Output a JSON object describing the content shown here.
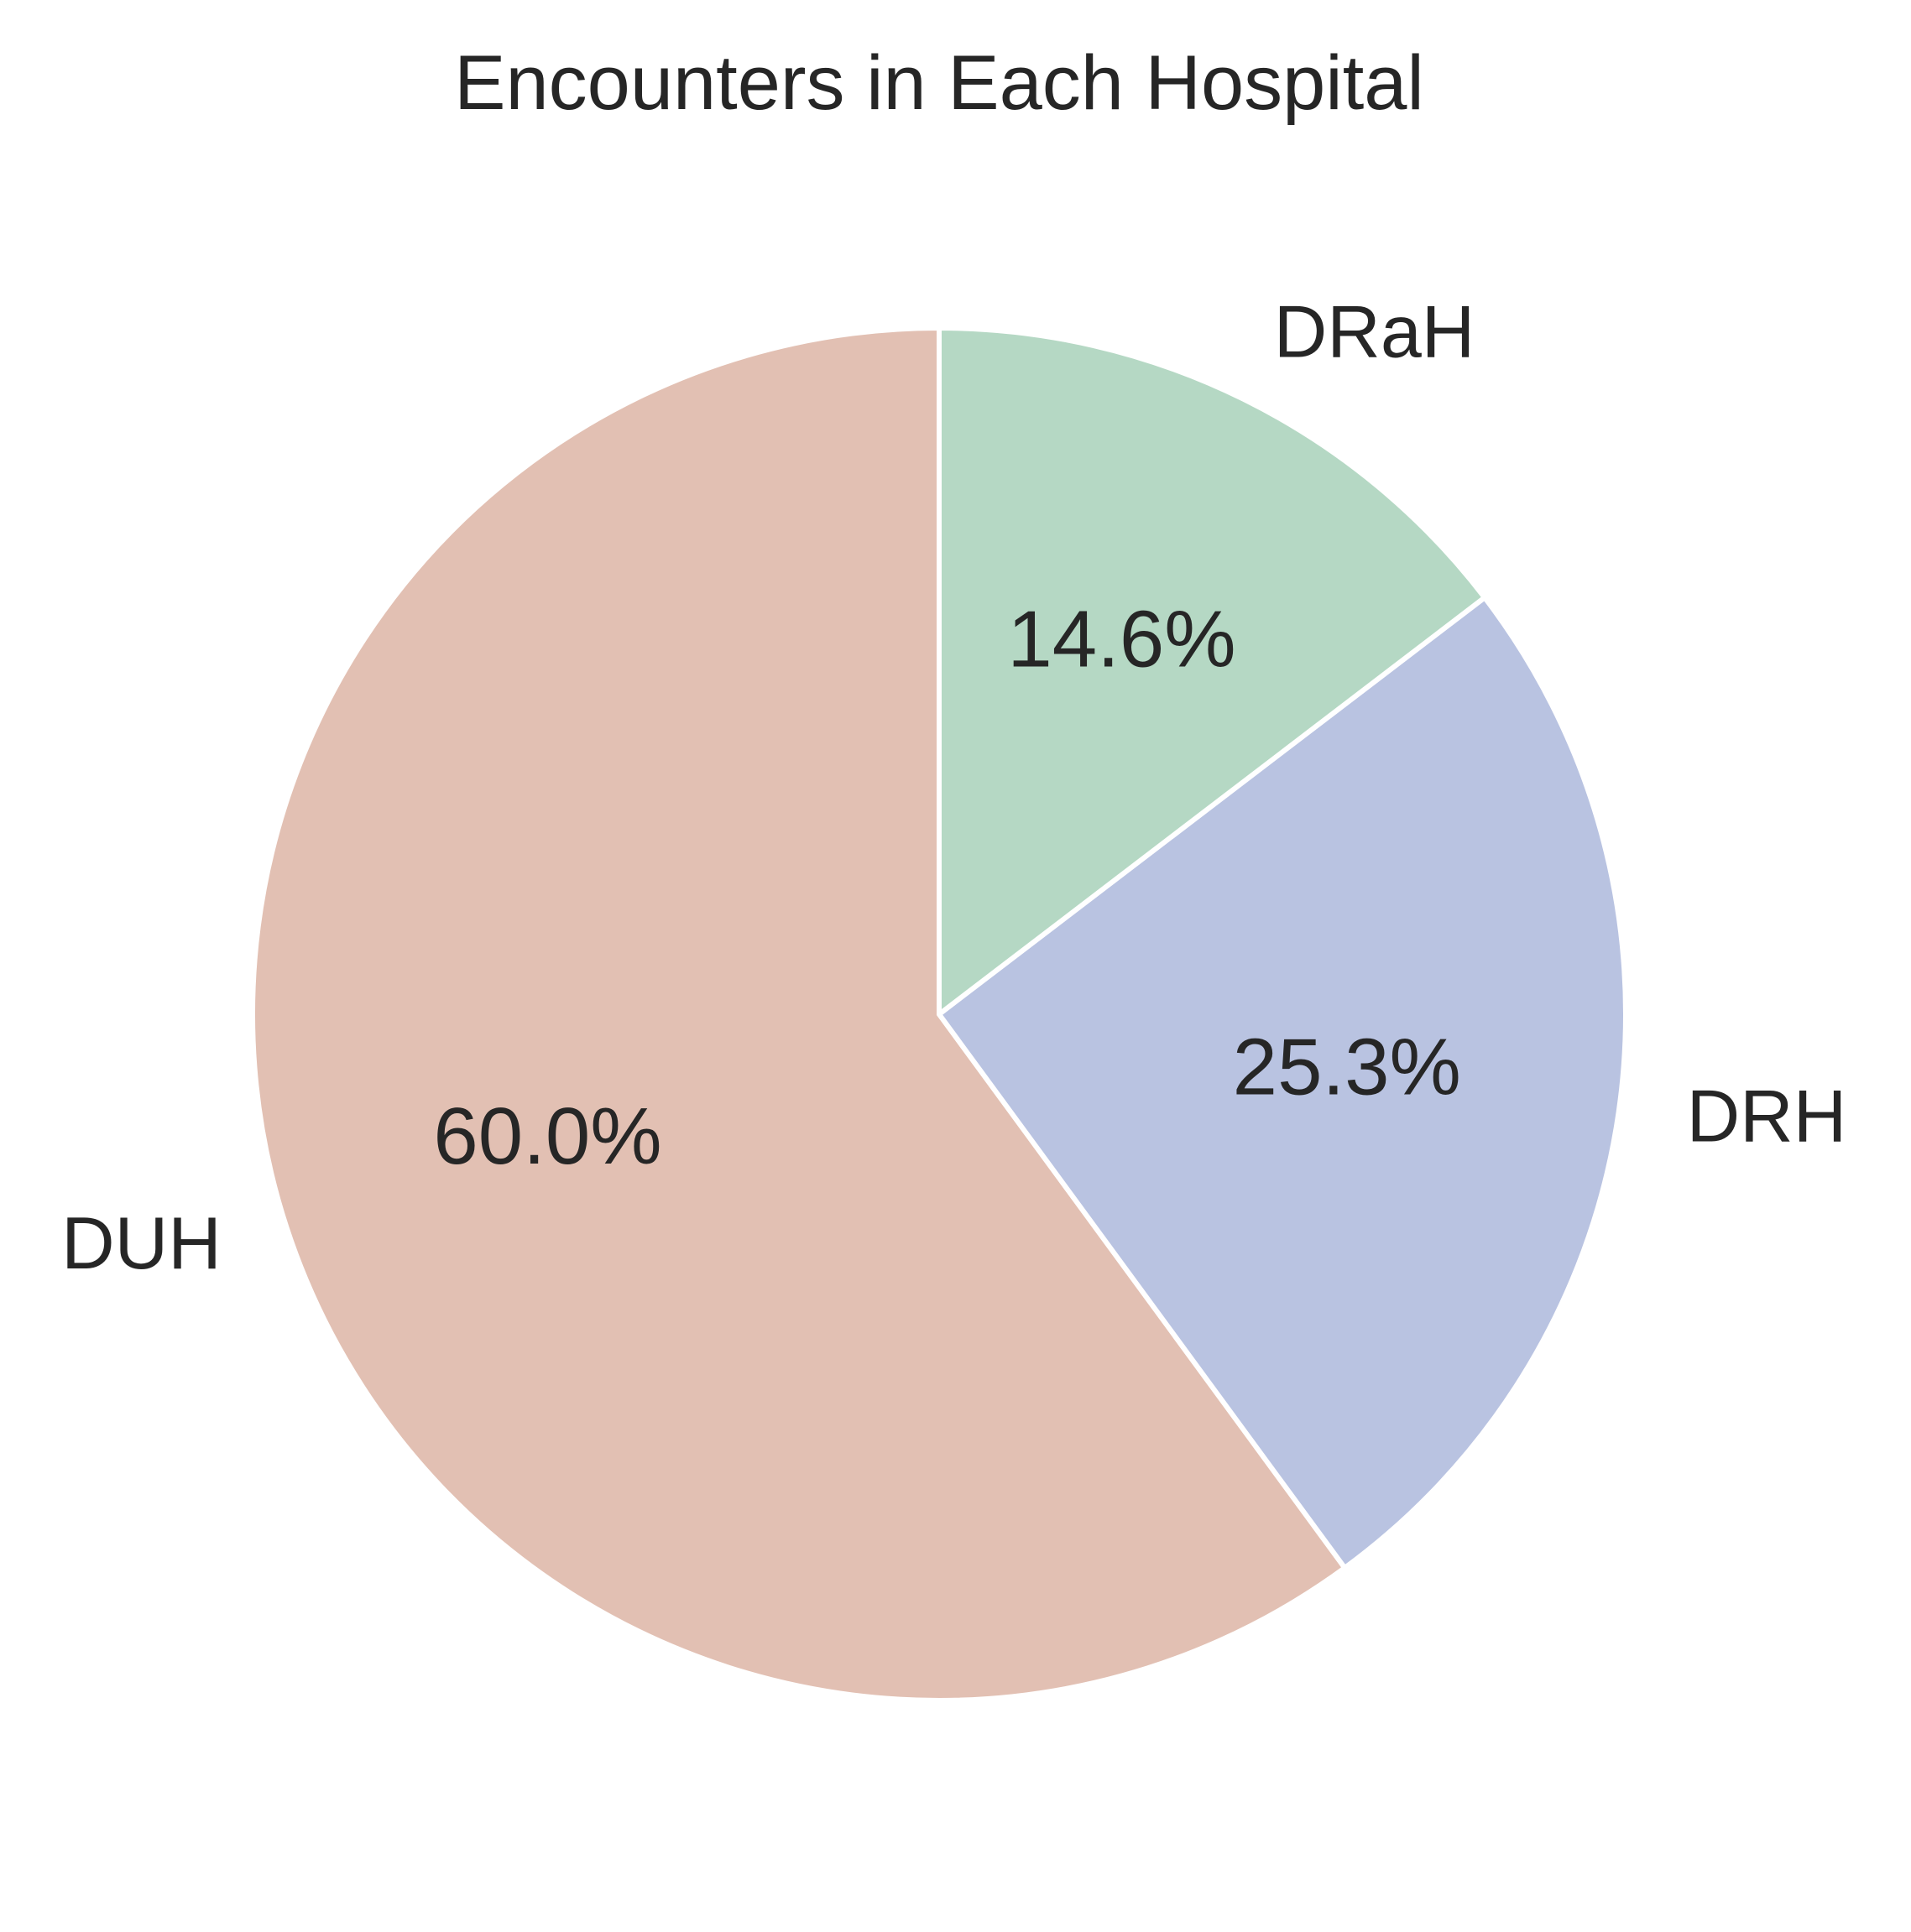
{
  "chart_data": {
    "type": "pie",
    "title": "Encounters in Each Hospital",
    "categories": [
      "DUH",
      "DRH",
      "DRaH"
    ],
    "values": [
      60.0,
      25.3,
      14.6
    ],
    "value_labels": [
      "60.0%",
      "25.3%",
      "14.6%"
    ],
    "colors": [
      "#E2C0B3",
      "#B9C3E1",
      "#B5D8C4"
    ],
    "slice_edge_color": "#FFFFFF",
    "start_angle_deg": 90,
    "direction": "counterclockwise",
    "legend": "none"
  }
}
